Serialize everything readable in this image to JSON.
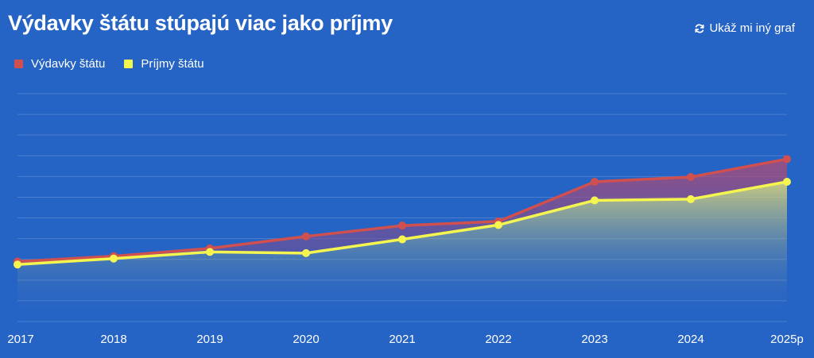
{
  "header": {
    "title": "Výdavky štátu stúpajú viac jako príjmy",
    "alt_chart_label": "Ukáž mi iný graf",
    "alt_chart_icon": "refresh-icon"
  },
  "colors": {
    "background": "#2563c4",
    "expenses": "#d0504f",
    "revenues": "#f5f550"
  },
  "chart_data": {
    "type": "area",
    "categories": [
      "2017",
      "2018",
      "2019",
      "2020",
      "2021",
      "2022",
      "2023",
      "2024",
      "2025p"
    ],
    "series": [
      {
        "name": "Výdavky štátu",
        "color": "#d0504f",
        "values": [
          100,
          109,
          122,
          142,
          160,
          167,
          233,
          241,
          271
        ]
      },
      {
        "name": "Príjmy štátu",
        "color": "#f5f550",
        "values": [
          95,
          105,
          116,
          114,
          137,
          161,
          202,
          204,
          233
        ]
      }
    ],
    "ylim": [
      0,
      380
    ],
    "grid": true,
    "legend_position": "top-left",
    "title": "Výdavky štátu stúpajú viac jako príjmy",
    "xlabel": "",
    "ylabel": ""
  }
}
